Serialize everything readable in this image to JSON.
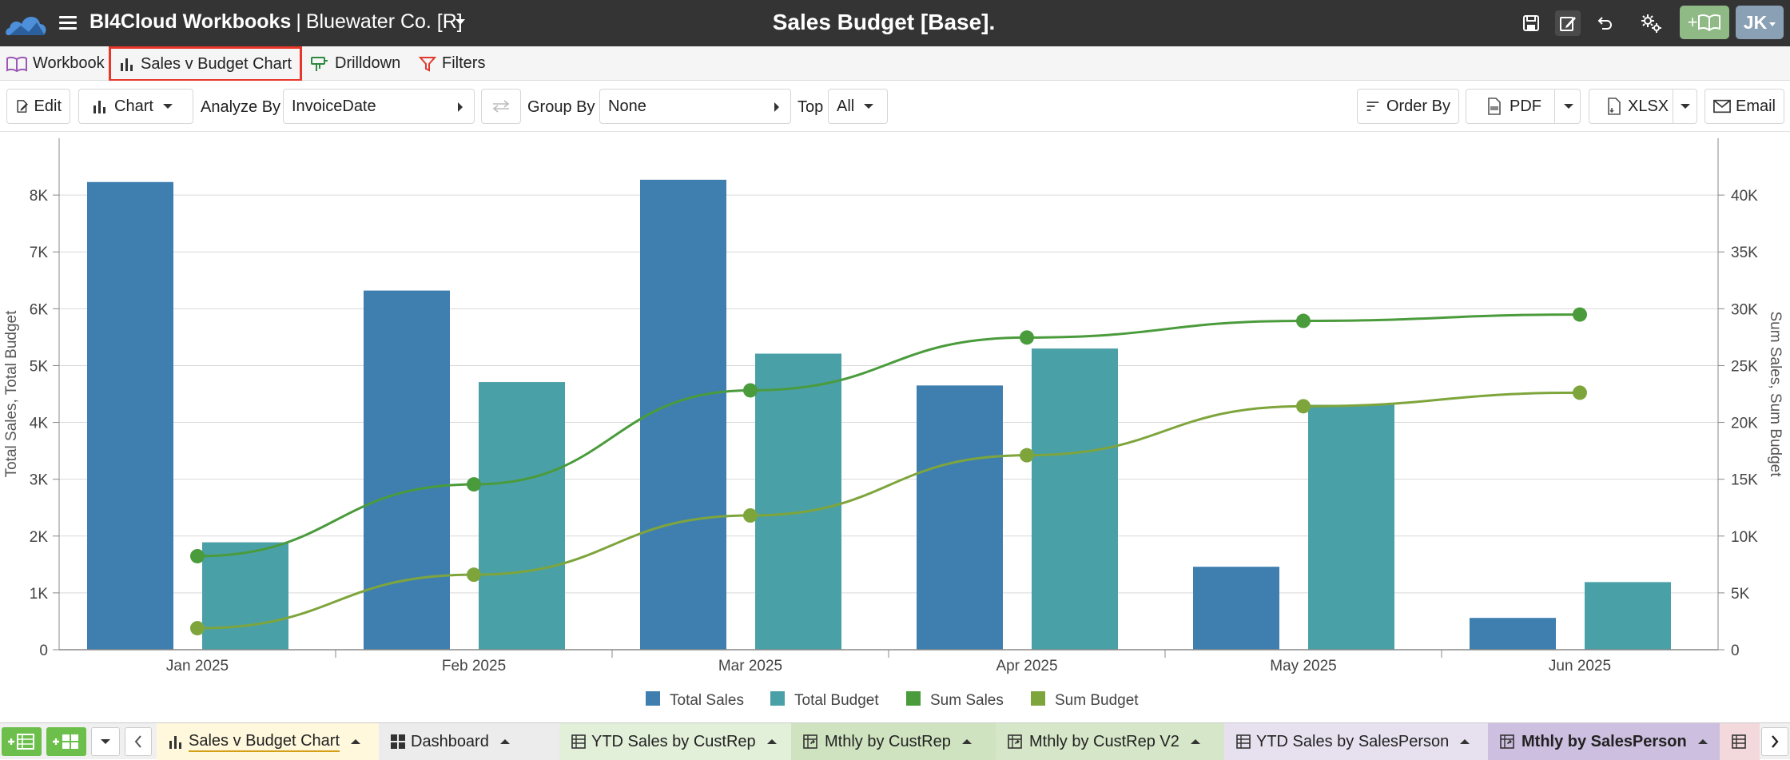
{
  "header": {
    "app_name": "BI4Cloud Workbooks",
    "separator": "|",
    "company": "Bluewater Co. [R]",
    "page_title": "Sales Budget [Base].",
    "add_book_label": "+",
    "user_initials": "JK"
  },
  "nav_tabs": {
    "workbook": "Workbook",
    "sales_chart": "Sales v Budget Chart",
    "drilldown": "Drilldown",
    "filters": "Filters"
  },
  "toolbar": {
    "edit_label": "Edit",
    "chart_label": "Chart",
    "analyze_by_label": "Analyze By",
    "analyze_by_value": "InvoiceDate",
    "group_by_label": "Group By",
    "group_by_value": "None",
    "top_label": "Top",
    "top_value": "All",
    "order_by_label": "Order By",
    "pdf_label": "PDF",
    "xlsx_label": "XLSX",
    "email_label": "Email"
  },
  "chart_data": {
    "type": "bar",
    "categories": [
      "Jan 2025",
      "Feb 2025",
      "Mar 2025",
      "Apr 2025",
      "May 2025",
      "Jun 2025"
    ],
    "ylabel": "Total Sales, Total Budget",
    "y2label": "Sum Sales, Sum Budget",
    "ylim": [
      0,
      9000
    ],
    "y2lim": [
      0,
      45000
    ],
    "yticks": [
      "0",
      "1K",
      "2K",
      "3K",
      "4K",
      "5K",
      "6K",
      "7K",
      "8K"
    ],
    "y2ticks": [
      "0",
      "5K",
      "10K",
      "15K",
      "20K",
      "25K",
      "30K",
      "35K",
      "40K"
    ],
    "series": [
      {
        "name": "Total Sales",
        "type": "bar",
        "axis": "left",
        "color": "#3f7fb0",
        "values": [
          8230,
          6320,
          8270,
          4650,
          1460,
          560
        ]
      },
      {
        "name": "Total Budget",
        "type": "bar",
        "axis": "left",
        "color": "#4aa0a7",
        "values": [
          1890,
          4710,
          5210,
          5300,
          4310,
          1190
        ]
      },
      {
        "name": "Sum Sales",
        "type": "line",
        "axis": "right",
        "color": "#4a9b3c",
        "values": [
          8230,
          14550,
          22820,
          27470,
          28930,
          29490
        ]
      },
      {
        "name": "Sum Budget",
        "type": "line",
        "axis": "right",
        "color": "#7ea53c",
        "values": [
          1890,
          6600,
          11810,
          17110,
          21420,
          22610
        ]
      }
    ]
  },
  "bottom_tabs": {
    "sales_chart": "Sales v Budget Chart",
    "dashboard": "Dashboard",
    "ytd_custrep": "YTD Sales by CustRep",
    "mthly_custrep": "Mthly by CustRep",
    "mthly_custrep_v2": "Mthly by CustRep V2",
    "ytd_salesperson": "YTD Sales by SalesPerson",
    "mthly_salesperson": "Mthly by SalesPerson"
  }
}
